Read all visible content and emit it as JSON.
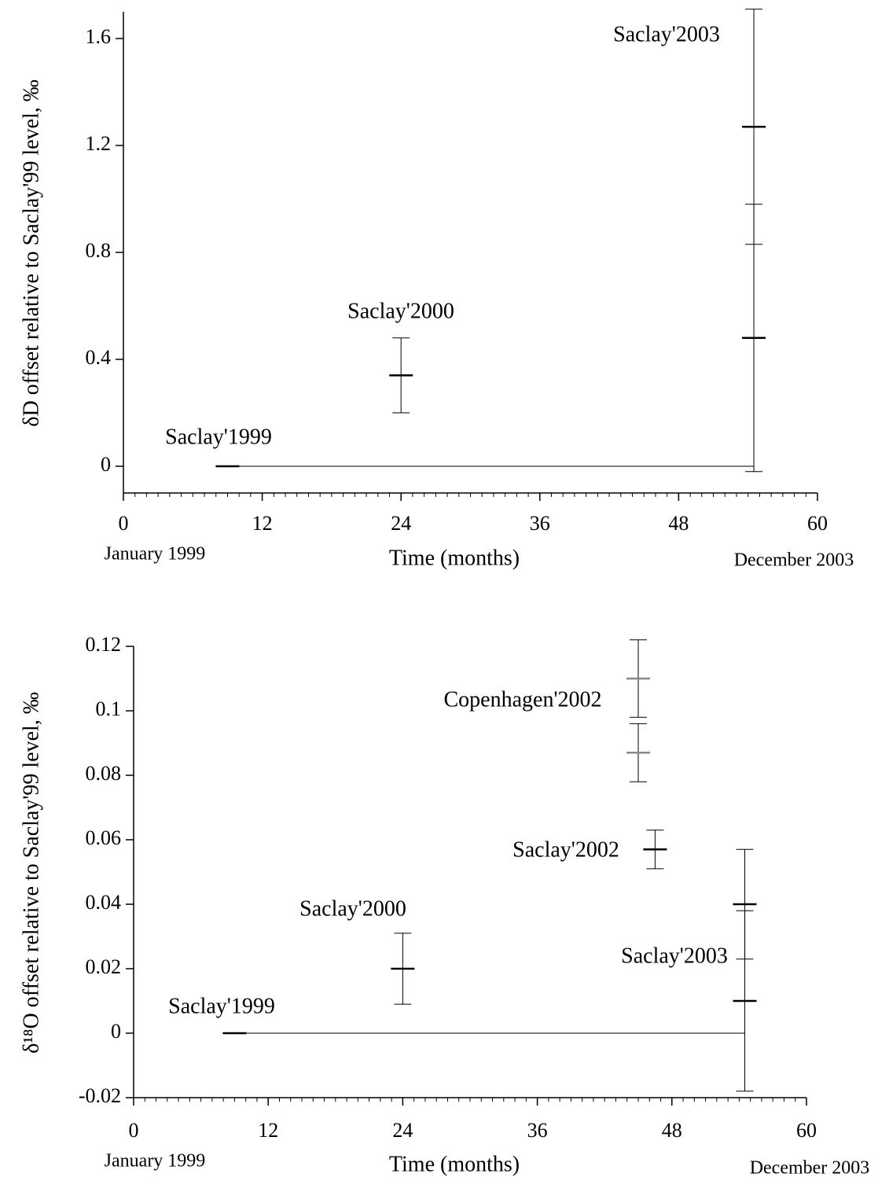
{
  "chart_data": [
    {
      "type": "errorbar",
      "xlabel": "Time (months)",
      "ylabel": "δD offset relative to Saclay'99 level, ‰",
      "x_start_label": "January 1999",
      "x_end_label": "December 2003",
      "xlim": [
        0,
        60
      ],
      "xticks": [
        0,
        12,
        24,
        36,
        48,
        60
      ],
      "x_minor_step": 1,
      "ylim": [
        -0.1,
        1.7
      ],
      "yticks": [
        0,
        0.4,
        0.8,
        1.2,
        1.6
      ],
      "baseline": {
        "x": [
          10,
          54.5
        ],
        "values": [
          0,
          0
        ]
      },
      "series": [
        {
          "name": "Saclay'1999",
          "color": "#000000",
          "x": [
            9
          ],
          "values": [
            0
          ],
          "errors": [
            0
          ]
        },
        {
          "name": "Saclay'2000",
          "color": "#000000",
          "x": [
            24
          ],
          "values": [
            0.34
          ],
          "errors": [
            0.14
          ]
        },
        {
          "name": "Saclay'2003",
          "color": "#000000",
          "x": [
            54.5,
            54.5
          ],
          "values": [
            1.27,
            0.48
          ],
          "errors": [
            0.44,
            0.5
          ]
        }
      ]
    },
    {
      "type": "errorbar",
      "xlabel": "Time (months)",
      "ylabel": "δ¹⁸O offset relative to Saclay'99 level, ‰",
      "x_start_label": "January 1999",
      "x_end_label": "December 2003",
      "xlim": [
        0,
        60
      ],
      "xticks": [
        0,
        12,
        24,
        36,
        48,
        60
      ],
      "x_minor_step": 1,
      "ylim": [
        -0.02,
        0.12
      ],
      "yticks": [
        -0.02,
        0,
        0.02,
        0.04,
        0.06,
        0.08,
        0.1,
        0.12
      ],
      "baseline": {
        "x": [
          10,
          54.5
        ],
        "values": [
          0,
          0
        ]
      },
      "series": [
        {
          "name": "Saclay'1999",
          "color": "#000000",
          "x": [
            9
          ],
          "values": [
            0
          ],
          "errors": [
            0
          ]
        },
        {
          "name": "Saclay'2000",
          "color": "#000000",
          "x": [
            24
          ],
          "values": [
            0.02
          ],
          "errors": [
            0.011
          ]
        },
        {
          "name": "Copenhagen'2002",
          "color": "#888888",
          "x": [
            45,
            45
          ],
          "values": [
            0.11,
            0.087
          ],
          "errors": [
            0.012,
            0.009
          ]
        },
        {
          "name": "Saclay'2002",
          "color": "#000000",
          "x": [
            46.5
          ],
          "values": [
            0.057
          ],
          "errors": [
            0.006
          ]
        },
        {
          "name": "Saclay'2003",
          "color": "#000000",
          "x": [
            54.5,
            54.5
          ],
          "values": [
            0.04,
            0.01
          ],
          "errors": [
            0.017,
            0.028
          ]
        }
      ]
    }
  ]
}
